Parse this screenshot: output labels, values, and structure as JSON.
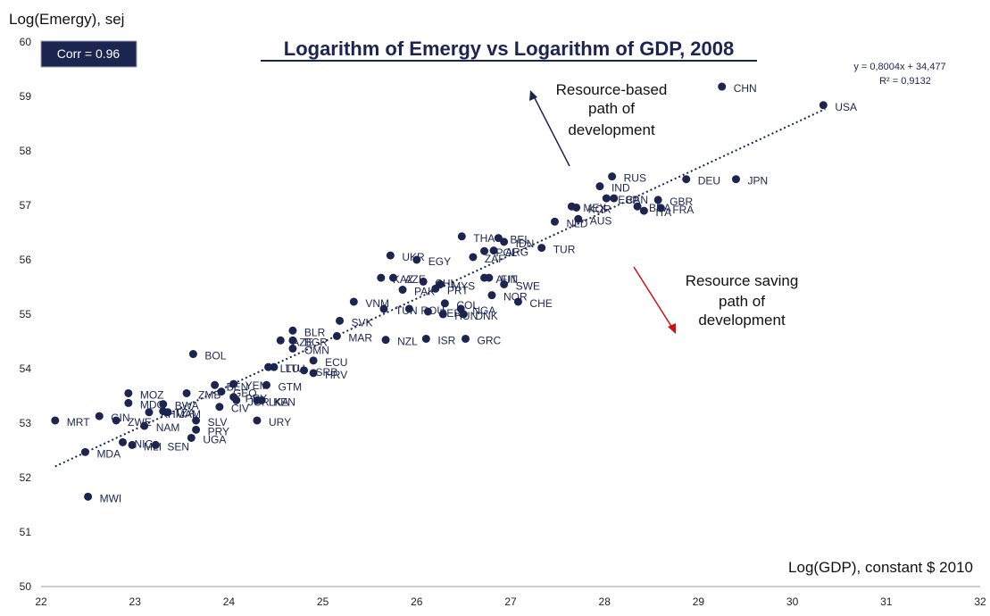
{
  "chart_data": {
    "type": "scatter",
    "title": "Logarithm of Emergy vs Logarithm of GDP, 2008",
    "ylabel": "Log(Emergy), sej",
    "xlabel": "Log(GDP), constant $ 2010",
    "xlim": [
      22,
      32
    ],
    "ylim": [
      50,
      60
    ],
    "xticks": [
      22,
      23,
      24,
      25,
      26,
      27,
      28,
      29,
      30,
      31,
      32
    ],
    "yticks": [
      50,
      51,
      52,
      53,
      54,
      55,
      56,
      57,
      58,
      59,
      60
    ],
    "grid": false,
    "corr_label": "Corr = 0.96",
    "trendline": {
      "slope": 0.8004,
      "intercept": 34.477,
      "x_range": [
        22.15,
        30.35
      ],
      "equation": "y = 0,8004x + 34,477",
      "r2": "R² = 0,9132"
    },
    "annotations": {
      "resource_based": [
        "Resource-based",
        "path of",
        "development"
      ],
      "resource_saving": [
        "Resource saving",
        "path of",
        "development"
      ]
    },
    "colors": {
      "points": "#1c2450",
      "title": "#1c2450",
      "corr_box": "#1c2450",
      "arrow_up": "#1c2450",
      "arrow_down": "#d01010"
    },
    "points": [
      {
        "label": "CHN",
        "x": 29.25,
        "y": 59.18
      },
      {
        "label": "USA",
        "x": 30.33,
        "y": 58.84
      },
      {
        "label": "RUS",
        "x": 28.08,
        "y": 57.53
      },
      {
        "label": "DEU",
        "x": 28.87,
        "y": 57.48
      },
      {
        "label": "JPN",
        "x": 29.4,
        "y": 57.48
      },
      {
        "label": "IND",
        "x": 27.95,
        "y": 57.35
      },
      {
        "label": "ESP",
        "x": 28.02,
        "y": 57.13
      },
      {
        "label": "CAN",
        "x": 28.1,
        "y": 57.13
      },
      {
        "label": "GBR",
        "x": 28.57,
        "y": 57.1
      },
      {
        "label": "MEX",
        "x": 27.65,
        "y": 56.98
      },
      {
        "label": "KOR",
        "x": 27.7,
        "y": 56.96
      },
      {
        "label": "BRA",
        "x": 28.35,
        "y": 56.98
      },
      {
        "label": "FRA",
        "x": 28.6,
        "y": 56.95
      },
      {
        "label": "ITA",
        "x": 28.42,
        "y": 56.9
      },
      {
        "label": "AUS",
        "x": 27.72,
        "y": 56.75
      },
      {
        "label": "NLD",
        "x": 27.47,
        "y": 56.7
      },
      {
        "label": "THA",
        "x": 26.48,
        "y": 56.43
      },
      {
        "label": "BEL",
        "x": 26.87,
        "y": 56.4
      },
      {
        "label": "IDN",
        "x": 26.93,
        "y": 56.33
      },
      {
        "label": "ARG",
        "x": 26.82,
        "y": 56.17
      },
      {
        "label": "POL",
        "x": 26.72,
        "y": 56.16
      },
      {
        "label": "ZAF",
        "x": 26.6,
        "y": 56.05
      },
      {
        "label": "TUR",
        "x": 27.33,
        "y": 56.22
      },
      {
        "label": "UKR",
        "x": 25.72,
        "y": 56.08
      },
      {
        "label": "EGY",
        "x": 26.0,
        "y": 56.0
      },
      {
        "label": "KAZ",
        "x": 25.62,
        "y": 55.67
      },
      {
        "label": "AZE",
        "x": 25.75,
        "y": 55.67
      },
      {
        "label": "PAK",
        "x": 25.85,
        "y": 55.45
      },
      {
        "label": "CHL",
        "x": 26.07,
        "y": 55.6
      },
      {
        "label": "MYS",
        "x": 26.25,
        "y": 55.55
      },
      {
        "label": "PRT",
        "x": 26.2,
        "y": 55.47
      },
      {
        "label": "AUT",
        "x": 26.72,
        "y": 55.67
      },
      {
        "label": "FIN",
        "x": 26.77,
        "y": 55.67
      },
      {
        "label": "SWE",
        "x": 26.93,
        "y": 55.55
      },
      {
        "label": "NOR",
        "x": 26.8,
        "y": 55.35
      },
      {
        "label": "CHE",
        "x": 27.08,
        "y": 55.23
      },
      {
        "label": "VNM",
        "x": 25.33,
        "y": 55.23
      },
      {
        "label": "TUN",
        "x": 25.65,
        "y": 55.1
      },
      {
        "label": "ROU",
        "x": 25.92,
        "y": 55.1
      },
      {
        "label": "PER",
        "x": 26.12,
        "y": 55.05
      },
      {
        "label": "COL",
        "x": 26.3,
        "y": 55.2
      },
      {
        "label": "NGA",
        "x": 26.47,
        "y": 55.1
      },
      {
        "label": "HUN",
        "x": 26.28,
        "y": 55.0
      },
      {
        "label": "DNK",
        "x": 26.5,
        "y": 55.0
      },
      {
        "label": "SVK",
        "x": 25.18,
        "y": 54.88
      },
      {
        "label": "MAR",
        "x": 25.15,
        "y": 54.6
      },
      {
        "label": "NZL",
        "x": 25.67,
        "y": 54.53
      },
      {
        "label": "ISR",
        "x": 26.1,
        "y": 54.55
      },
      {
        "label": "GRC",
        "x": 26.52,
        "y": 54.55
      },
      {
        "label": "BLR",
        "x": 24.68,
        "y": 54.7
      },
      {
        "label": "AZE",
        "x": 24.55,
        "y": 54.52
      },
      {
        "label": "BGR",
        "x": 24.68,
        "y": 54.52
      },
      {
        "label": "OMN",
        "x": 24.68,
        "y": 54.37
      },
      {
        "label": "BOL",
        "x": 23.62,
        "y": 54.27
      },
      {
        "label": "ECU",
        "x": 24.9,
        "y": 54.15
      },
      {
        "label": "LTU",
        "x": 24.42,
        "y": 54.03
      },
      {
        "label": "LTU",
        "x": 24.48,
        "y": 54.03
      },
      {
        "label": "SRB",
        "x": 24.8,
        "y": 53.97
      },
      {
        "label": "HRV",
        "x": 24.9,
        "y": 53.92
      },
      {
        "label": "BEN",
        "x": 23.85,
        "y": 53.7
      },
      {
        "label": "YEM",
        "x": 24.05,
        "y": 53.72
      },
      {
        "label": "GTM",
        "x": 24.4,
        "y": 53.7
      },
      {
        "label": "ZMB",
        "x": 23.55,
        "y": 53.55
      },
      {
        "label": "GEO",
        "x": 23.92,
        "y": 53.58
      },
      {
        "label": "PRY",
        "x": 24.05,
        "y": 53.48
      },
      {
        "label": "JOR",
        "x": 24.08,
        "y": 53.42
      },
      {
        "label": "LKA",
        "x": 24.3,
        "y": 53.42
      },
      {
        "label": "KEN",
        "x": 24.35,
        "y": 53.42
      },
      {
        "label": "CIV",
        "x": 23.9,
        "y": 53.3
      },
      {
        "label": "MOZ",
        "x": 22.93,
        "y": 53.55
      },
      {
        "label": "MDG",
        "x": 22.93,
        "y": 53.37
      },
      {
        "label": "BWA",
        "x": 23.3,
        "y": 53.35
      },
      {
        "label": "TZA",
        "x": 23.3,
        "y": 53.22
      },
      {
        "label": "JAM",
        "x": 23.35,
        "y": 53.2
      },
      {
        "label": "KHM",
        "x": 23.15,
        "y": 53.2
      },
      {
        "label": "GIN",
        "x": 22.62,
        "y": 53.13
      },
      {
        "label": "ZWE",
        "x": 22.8,
        "y": 53.05
      },
      {
        "label": "MRT",
        "x": 22.15,
        "y": 53.05
      },
      {
        "label": "NAM",
        "x": 23.1,
        "y": 52.95
      },
      {
        "label": "SLV",
        "x": 23.65,
        "y": 53.05
      },
      {
        "label": "URY",
        "x": 24.3,
        "y": 53.05
      },
      {
        "label": "PRY",
        "x": 23.65,
        "y": 52.88
      },
      {
        "label": "UGA",
        "x": 23.6,
        "y": 52.73
      },
      {
        "label": "NIC",
        "x": 22.87,
        "y": 52.65
      },
      {
        "label": "MLI",
        "x": 22.97,
        "y": 52.6
      },
      {
        "label": "SEN",
        "x": 23.22,
        "y": 52.6
      },
      {
        "label": "MDA",
        "x": 22.47,
        "y": 52.47
      },
      {
        "label": "MWI",
        "x": 22.5,
        "y": 51.65
      }
    ]
  }
}
